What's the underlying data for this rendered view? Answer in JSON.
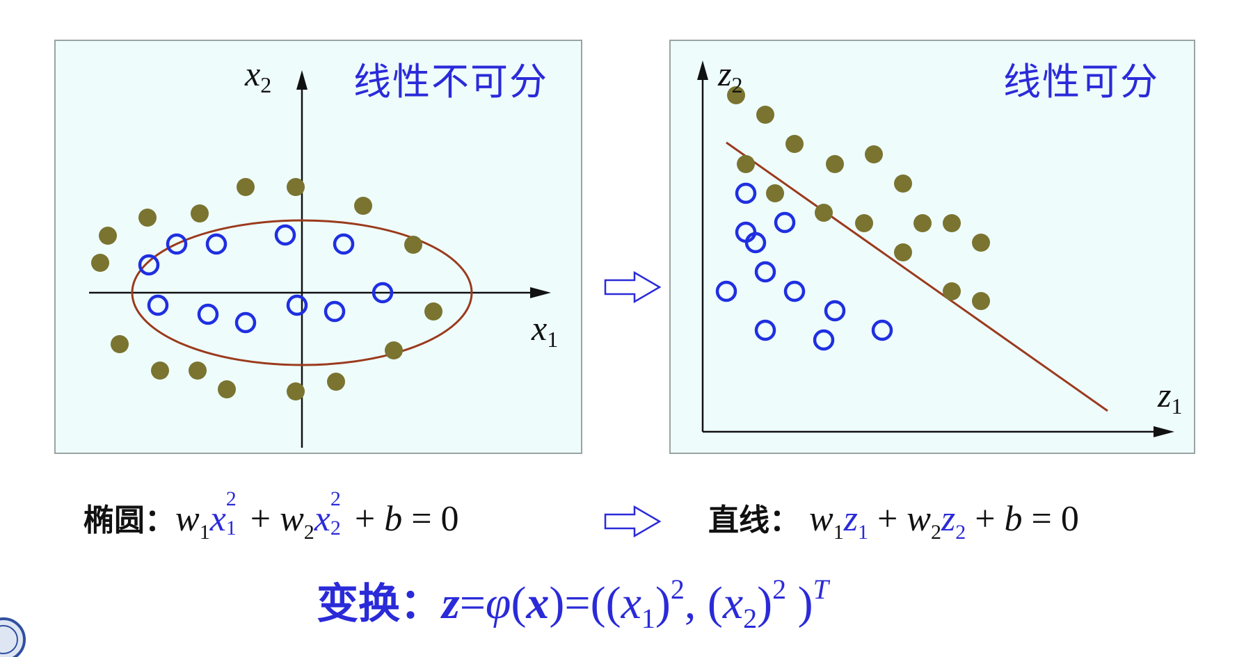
{
  "left_panel": {
    "tag": "线性不可分",
    "x_axis": {
      "var": "x",
      "sub": "1"
    },
    "y_axis": {
      "var": "x",
      "sub": "2"
    }
  },
  "right_panel": {
    "tag": "线性可分",
    "x_axis": {
      "var": "z",
      "sub": "1"
    },
    "y_axis": {
      "var": "z",
      "sub": "2"
    }
  },
  "equations": {
    "ellipse_label": "椭圆：",
    "line_label": "直线：",
    "w": "w",
    "x": "x",
    "z": "z",
    "b": "b",
    "one": "1",
    "two": "2",
    "plus": "+",
    "equals": "=",
    "zero": "0"
  },
  "transform": {
    "label": "变换：",
    "lhs": "z",
    "eq1": "=",
    "phi": "φ",
    "open": "(",
    "x": "x",
    "close_eq": ")=((",
    "x1": "x",
    "sub1": "1",
    "close1": ")",
    "sup1": "2",
    "comma": ", (",
    "x2": "x",
    "sub2": "2",
    "close2": ")",
    "sup2": "2",
    "close3": " )",
    "supT": "T"
  },
  "colors": {
    "circle": "#1f2fe0",
    "dot": "#7a7430",
    "curve": "#9b3a1c",
    "accent_blue": "#2a2ad9",
    "panel_bg": "#eefcfc"
  },
  "icons": {
    "arrow": "hollow-right-arrow-icon",
    "logo": "university-seal-icon"
  }
}
